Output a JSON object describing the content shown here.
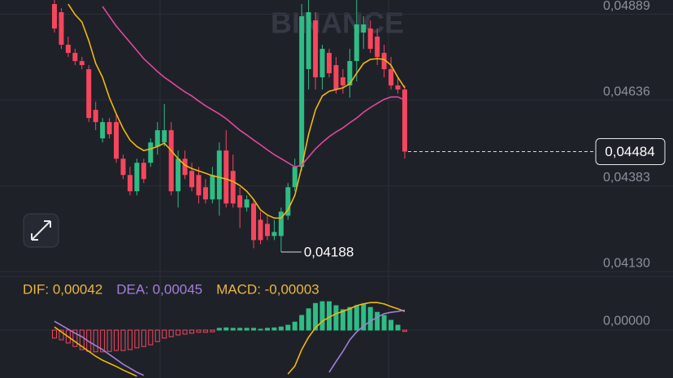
{
  "chart_data": {
    "type": "candlestick",
    "watermark": "BINANCE",
    "ylim": [
      0.04116,
      0.04931
    ],
    "yticks": [
      {
        "value": 0.04889,
        "label": "0,04889"
      },
      {
        "value": 0.04636,
        "label": "0,04636"
      },
      {
        "value": 0.04383,
        "label": "0,04383"
      },
      {
        "value": 0.0413,
        "label": "0,04130"
      }
    ],
    "up_color": "#2ebd85",
    "down_color": "#f6465d",
    "open": [
      0.04919,
      0.04895,
      0.04799,
      0.04775,
      0.04751,
      0.04727,
      0.04607,
      0.04523,
      0.04571,
      0.04571,
      0.04463,
      0.04415,
      0.04367,
      0.04451,
      0.04451,
      0.04499,
      0.04511,
      0.04547,
      0.04367,
      0.04463,
      0.04427,
      0.04415,
      0.04379,
      0.04343,
      0.04343,
      0.04487,
      0.04427,
      0.04355,
      0.04319,
      0.04331,
      0.04283,
      0.04271,
      0.04235,
      0.04235,
      0.04295,
      0.04379,
      0.04439,
      0.04727,
      0.04871,
      0.04703,
      0.04775,
      0.04739,
      0.04703,
      0.04679,
      0.04751,
      0.04835,
      0.04847,
      0.04823,
      0.04775,
      0.04727,
      0.04679,
      0.04667
    ],
    "high": [
      0.04931,
      0.04907,
      0.04823,
      0.04787,
      0.04763,
      0.04739,
      0.04631,
      0.04583,
      0.04583,
      0.04595,
      0.04475,
      0.04439,
      0.04463,
      0.04463,
      0.04523,
      0.04571,
      0.04624,
      0.04571,
      0.04487,
      0.04487,
      0.04451,
      0.04439,
      0.04403,
      0.04439,
      0.04511,
      0.04547,
      0.04475,
      0.04379,
      0.04355,
      0.04343,
      0.04307,
      0.04295,
      0.04283,
      0.04319,
      0.04391,
      0.04463,
      0.04919,
      0.04931,
      0.04895,
      0.04799,
      0.04787,
      0.04763,
      0.04727,
      0.04787,
      0.04931,
      0.04883,
      0.04871,
      0.04847,
      0.04799,
      0.04763,
      0.04703,
      0.04679
    ],
    "low": [
      0.04835,
      0.04787,
      0.04763,
      0.04739,
      0.04727,
      0.04571,
      0.04547,
      0.04511,
      0.04523,
      0.04451,
      0.04403,
      0.04355,
      0.04355,
      0.04391,
      0.04439,
      0.04475,
      0.04499,
      0.04355,
      0.04319,
      0.04403,
      0.04367,
      0.04331,
      0.04331,
      0.04331,
      0.04295,
      0.04319,
      0.04319,
      0.04259,
      0.04307,
      0.04199,
      0.04211,
      0.04223,
      0.04223,
      0.04188,
      0.04283,
      0.04367,
      0.04427,
      0.04667,
      0.04667,
      0.04667,
      0.04703,
      0.04655,
      0.04655,
      0.04643,
      0.04691,
      0.04787,
      0.04775,
      0.04739,
      0.04703,
      0.04667,
      0.04655,
      0.04463
    ],
    "close": [
      0.04847,
      0.04799,
      0.04775,
      0.04751,
      0.04739,
      0.04583,
      0.04571,
      0.04571,
      0.04535,
      0.04463,
      0.04415,
      0.04367,
      0.04451,
      0.04403,
      0.04511,
      0.04547,
      0.04547,
      0.04367,
      0.04463,
      0.04415,
      0.04379,
      0.04355,
      0.04343,
      0.04415,
      0.04487,
      0.04331,
      0.04331,
      0.04319,
      0.04343,
      0.04223,
      0.04223,
      0.04235,
      0.04247,
      0.04307,
      0.04379,
      0.04439,
      0.04883,
      0.04895,
      0.04703,
      0.04787,
      0.04715,
      0.04667,
      0.04679,
      0.04751,
      0.04859,
      0.04859,
      0.04787,
      0.04763,
      0.04727,
      0.04679,
      0.04667,
      0.04484
    ],
    "series": [
      {
        "color": "#f0b90b",
        "values": [
          null,
          null,
          0.04919,
          0.04888,
          0.04866,
          0.04811,
          0.04744,
          0.04703,
          0.04643,
          0.04595,
          0.04552,
          0.04518,
          0.04499,
          0.04487,
          0.04492,
          0.04499,
          0.04509,
          0.04487,
          0.04463,
          0.04444,
          0.04434,
          0.04427,
          0.0442,
          0.04413,
          0.04408,
          0.04403,
          0.04396,
          0.04384,
          0.04367,
          0.04343,
          0.04312,
          0.04297,
          0.04288,
          0.04288,
          0.04312,
          0.04355,
          0.04439,
          0.04535,
          0.04607,
          0.04648,
          0.04662,
          0.04667,
          0.04672,
          0.04684,
          0.04715,
          0.04744,
          0.04756,
          0.04758,
          0.04756,
          0.04739,
          0.04703,
          0.04672
        ]
      },
      {
        "color": "#e0489e",
        "values": [
          null,
          null,
          null,
          null,
          null,
          null,
          null,
          0.04912,
          0.04883,
          0.04854,
          0.0483,
          0.04806,
          0.04782,
          0.04758,
          0.04739,
          0.0472,
          0.04703,
          0.04689,
          0.04674,
          0.0466,
          0.04648,
          0.04633,
          0.04619,
          0.04607,
          0.04595,
          0.04581,
          0.04564,
          0.04547,
          0.04533,
          0.04518,
          0.04504,
          0.04489,
          0.04475,
          0.04463,
          0.04451,
          0.04439,
          0.04444,
          0.04468,
          0.04492,
          0.04511,
          0.04528,
          0.04542,
          0.04554,
          0.04569,
          0.04583,
          0.046,
          0.04614,
          0.04626,
          0.04638,
          0.04645,
          0.04645,
          0.04636
        ]
      }
    ],
    "last_price": {
      "value": 0.04484,
      "label": "0,04484"
    },
    "low_marker": {
      "value": 0.04188,
      "label": "0,04188"
    },
    "macd": {
      "labels": [
        {
          "text": "DIF: 0,00042",
          "color": "#e9b63f"
        },
        {
          "text": "DEA: 0,00045",
          "color": "#a27fd8"
        },
        {
          "text": "MACD: -0,00003",
          "color": "#e9b63f"
        }
      ],
      "ylim": [
        -0.00108,
        0.00121
      ],
      "yticks": [
        {
          "value": 0,
          "label": "0,00000"
        }
      ],
      "histogram": [
        -0.00018,
        -0.00022,
        -0.00029,
        -0.00037,
        -0.00044,
        -0.00048,
        -0.00049,
        -0.00049,
        -0.00048,
        -0.00046,
        -0.00046,
        -0.00044,
        -0.0004,
        -0.00037,
        -0.00033,
        -0.00026,
        -0.00018,
        -0.00015,
        -0.00011,
        -9e-05,
        -7e-05,
        -5e-05,
        -5e-05,
        -4e-05,
        4e-05,
        5e-05,
        4e-05,
        4e-05,
        4e-05,
        4e-05,
        2e-05,
        4e-05,
        5e-05,
        7e-05,
        0.00011,
        0.00018,
        0.00033,
        0.00048,
        0.0006,
        0.00064,
        0.00064,
        0.00055,
        0.00046,
        0.00051,
        0.00055,
        0.00059,
        0.00051,
        0.0004,
        0.00033,
        0.00022,
        0.00011,
        -3e-05
      ],
      "dif": {
        "color": "#f0b90b",
        "values": [
          7e-05,
          -4e-05,
          -0.00015,
          -0.00026,
          -0.00037,
          -0.00048,
          -0.00059,
          -0.00068,
          -0.00075,
          -0.00082,
          -0.0009,
          -0.00097,
          -0.00104,
          null,
          null,
          null,
          null,
          null,
          null,
          null,
          null,
          null,
          null,
          null,
          null,
          null,
          null,
          null,
          null,
          null,
          null,
          null,
          null,
          null,
          -0.00099,
          -0.00081,
          -0.00044,
          -0.00016,
          5e-05,
          0.0002,
          0.00029,
          0.00037,
          0.00042,
          0.00048,
          0.00055,
          0.00059,
          0.00062,
          0.00062,
          0.00059,
          0.00053,
          0.00048,
          0.00042
        ]
      },
      "dea": {
        "color": "#a27fd8",
        "values": [
          0.0002,
          0.00011,
          2e-05,
          -7e-05,
          -0.00015,
          -0.00026,
          -0.00035,
          -0.00044,
          -0.00055,
          -0.00066,
          -0.00077,
          -0.00086,
          -0.00095,
          -0.00102,
          null,
          null,
          null,
          null,
          null,
          null,
          null,
          null,
          null,
          null,
          null,
          null,
          null,
          null,
          null,
          null,
          null,
          null,
          null,
          null,
          null,
          null,
          null,
          null,
          null,
          null,
          -0.00095,
          -0.00071,
          -0.00048,
          -0.00022,
          -4e-05,
          9e-05,
          0.0002,
          0.00029,
          0.00037,
          0.0004,
          0.00042,
          0.00045
        ]
      }
    }
  }
}
